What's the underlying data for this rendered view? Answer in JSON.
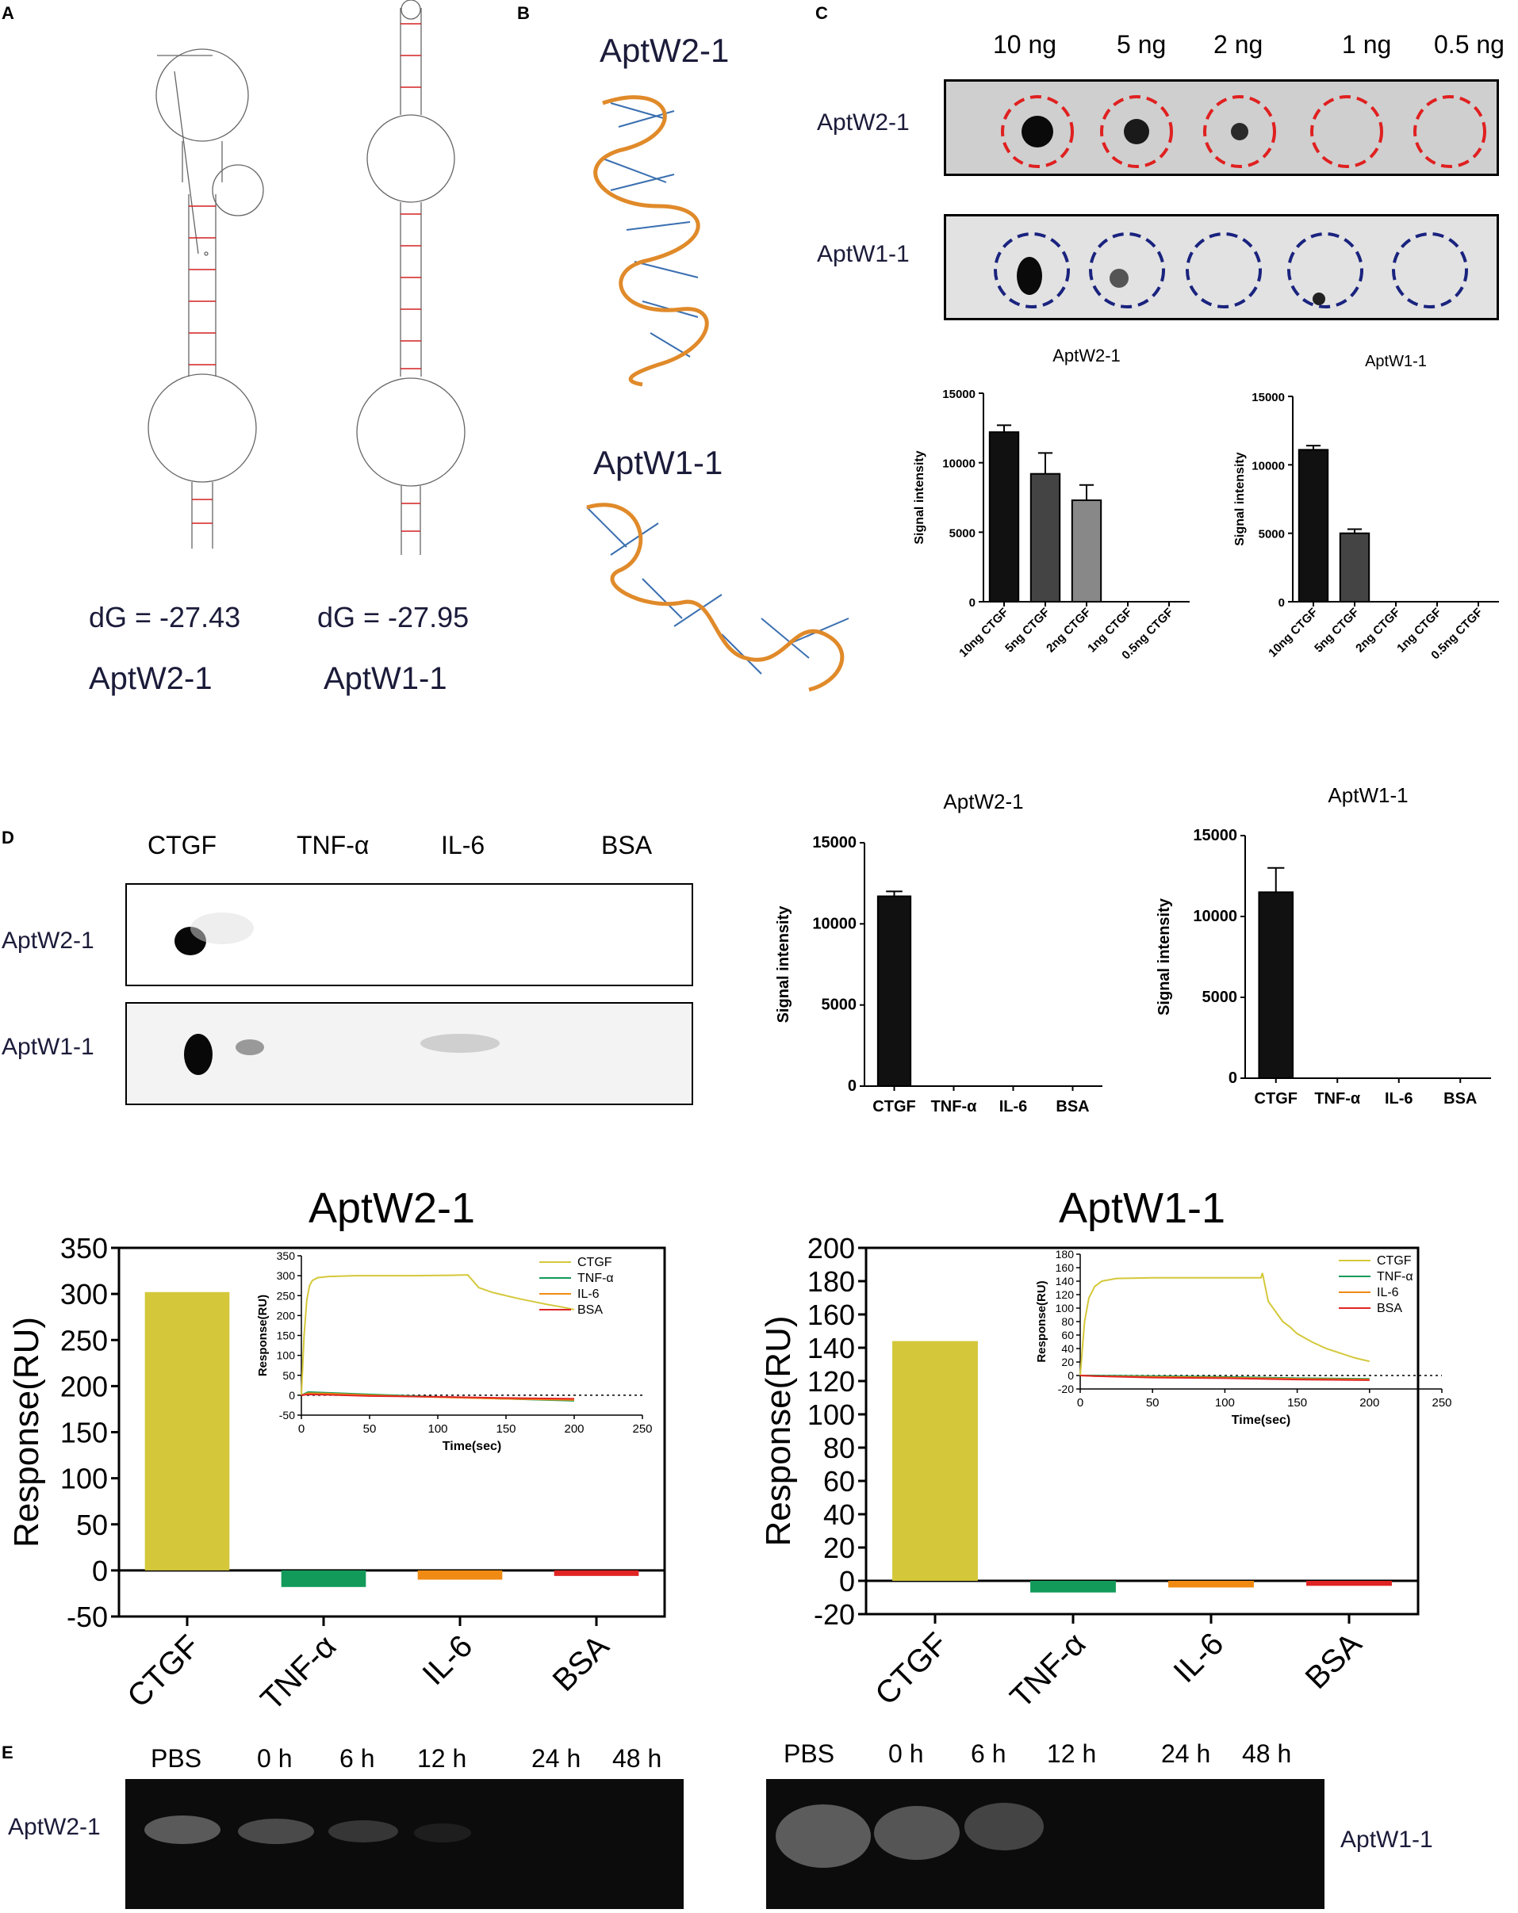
{
  "panels": [
    "A",
    "B",
    "C",
    "D",
    "E"
  ],
  "panel_a": {
    "left": {
      "dg": "dG = -27.43",
      "name": "AptW2-1"
    },
    "right": {
      "dg": "dG = -27.95",
      "name": "AptW1-1"
    }
  },
  "panel_b": {
    "top_name": "AptW2-1",
    "bottom_name": "AptW1-1"
  },
  "panel_c": {
    "amounts": [
      "10 ng",
      "5 ng",
      "2 ng",
      "1 ng",
      "0.5 ng"
    ],
    "row1": "AptW2-1",
    "row2": "AptW1-1",
    "colors": {
      "row1_circle": "#e02020",
      "row2_circle": "#1a237e"
    }
  },
  "panel_d_blot": {
    "proteins": [
      "CTGF",
      "TNF-α",
      "IL-6",
      "BSA"
    ],
    "row1": "AptW2-1",
    "row2": "AptW1-1"
  },
  "panel_e": {
    "left_times": [
      "PBS",
      "0 h",
      "6 h",
      "12 h",
      "24 h",
      "48 h"
    ],
    "right_times": [
      "PBS",
      "0 h",
      "6 h",
      "12 h",
      "24 h",
      "48 h"
    ],
    "left_label": "AptW2-1",
    "right_label": "AptW1-1"
  },
  "chart_data": [
    {
      "id": "c-aptw2",
      "type": "bar",
      "title": "AptW2-1",
      "ylabel": "Signal intensity",
      "categories": [
        "10ng CTGF",
        "5ng CTGF",
        "2ng CTGF",
        "1ng CTGF",
        "0.5ng CTGF"
      ],
      "values": [
        12200,
        9200,
        7300,
        0,
        0
      ],
      "errors": [
        500,
        1500,
        1100,
        0,
        0
      ],
      "colors": [
        "#111111",
        "#444444",
        "#888888",
        "#111111",
        "#111111"
      ],
      "ylim": [
        0,
        15000
      ],
      "yticks": [
        0,
        5000,
        10000,
        15000
      ]
    },
    {
      "id": "c-aptw1",
      "type": "bar",
      "title": "AptW1-1",
      "ylabel": "Signal intensity",
      "categories": [
        "10ng CTGF",
        "5ng CTGF",
        "2ng CTGF",
        "1ng CTGF",
        "0.5ng CTGF"
      ],
      "values": [
        11100,
        5000,
        0,
        0,
        0
      ],
      "errors": [
        300,
        300,
        0,
        0,
        0
      ],
      "colors": [
        "#111111",
        "#444444",
        "#888888",
        "#111111",
        "#111111"
      ],
      "ylim": [
        0,
        15000
      ],
      "yticks": [
        0,
        5000,
        10000,
        15000
      ]
    },
    {
      "id": "d-aptw2",
      "type": "bar",
      "title": "AptW2-1",
      "ylabel": "Signal intensity",
      "categories": [
        "CTGF",
        "TNF-α",
        "IL-6",
        "BSA"
      ],
      "values": [
        11700,
        0,
        0,
        0
      ],
      "errors": [
        300,
        0,
        0,
        0
      ],
      "colors": [
        "#111111",
        "#111111",
        "#111111",
        "#111111"
      ],
      "ylim": [
        0,
        15000
      ],
      "yticks": [
        0,
        5000,
        10000,
        15000
      ]
    },
    {
      "id": "d-aptw1",
      "type": "bar",
      "title": "AptW1-1",
      "ylabel": "Signal intensity",
      "categories": [
        "CTGF",
        "TNF-α",
        "IL-6",
        "BSA"
      ],
      "values": [
        11500,
        0,
        0,
        0
      ],
      "errors": [
        1500,
        0,
        0,
        0
      ],
      "colors": [
        "#111111",
        "#111111",
        "#111111",
        "#111111"
      ],
      "ylim": [
        0,
        15000
      ],
      "yticks": [
        0,
        5000,
        10000,
        15000
      ]
    },
    {
      "id": "spr-aptw2",
      "type": "bar",
      "title": "AptW2-1",
      "ylabel": "Response(RU)",
      "categories": [
        "CTGF",
        "TNF-α",
        "IL-6",
        "BSA"
      ],
      "values": [
        302,
        -18,
        -10,
        -6
      ],
      "colors": [
        "#d4c83a",
        "#129a5a",
        "#f08a12",
        "#e02424"
      ],
      "ylim": [
        -50,
        350
      ],
      "yticks": [
        -50,
        0,
        50,
        100,
        150,
        200,
        250,
        300,
        350
      ],
      "inset": {
        "type": "line",
        "xlabel": "Time(sec)",
        "ylabel": "Response(RU)",
        "xlim": [
          0,
          250
        ],
        "ylim": [
          -50,
          350
        ],
        "xticks": [
          0,
          50,
          100,
          150,
          200,
          250
        ],
        "yticks": [
          -50,
          0,
          50,
          100,
          150,
          200,
          250,
          300,
          350
        ],
        "series": [
          {
            "name": "CTGF",
            "color": "#d4c83a",
            "x": [
              0,
              2,
              4,
              6,
              8,
              12,
              20,
              40,
              80,
              110,
              122,
              130,
              140,
              150,
              160,
              170,
              180,
              190,
              200
            ],
            "y": [
              0,
              150,
              240,
              275,
              288,
              295,
              298,
              300,
              300,
              301,
              302,
              270,
              258,
              250,
              242,
              235,
              228,
              222,
              215
            ]
          },
          {
            "name": "TNF-α",
            "color": "#129a5a",
            "x": [
              0,
              5,
              20,
              50,
              100,
              150,
              200
            ],
            "y": [
              0,
              8,
              6,
              2,
              -4,
              -9,
              -14
            ]
          },
          {
            "name": "IL-6",
            "color": "#f08a12",
            "x": [
              0,
              5,
              20,
              50,
              100,
              150,
              200
            ],
            "y": [
              0,
              5,
              4,
              0,
              -5,
              -9,
              -12
            ]
          },
          {
            "name": "BSA",
            "color": "#e02424",
            "x": [
              0,
              5,
              20,
              50,
              100,
              150,
              200
            ],
            "y": [
              0,
              2,
              1,
              -2,
              -4,
              -7,
              -9
            ]
          }
        ]
      }
    },
    {
      "id": "spr-aptw1",
      "type": "bar",
      "title": "AptW1-1",
      "ylabel": "Response(RU)",
      "categories": [
        "CTGF",
        "TNF-α",
        "IL-6",
        "BSA"
      ],
      "values": [
        144,
        -7,
        -4,
        -3
      ],
      "colors": [
        "#d4c83a",
        "#129a5a",
        "#f08a12",
        "#e02424"
      ],
      "ylim": [
        -20,
        200
      ],
      "yticks": [
        -20,
        0,
        20,
        40,
        60,
        80,
        100,
        120,
        140,
        160,
        180,
        200
      ],
      "inset": {
        "type": "line",
        "xlabel": "Time(sec)",
        "ylabel": "Response(RU)",
        "xlim": [
          0,
          250
        ],
        "ylim": [
          -20,
          180
        ],
        "xticks": [
          0,
          50,
          100,
          150,
          200,
          250
        ],
        "yticks": [
          -20,
          0,
          20,
          40,
          60,
          80,
          100,
          120,
          140,
          160,
          180
        ],
        "series": [
          {
            "name": "CTGF",
            "color": "#d4c83a",
            "x": [
              0,
              3,
              6,
              10,
              15,
              25,
              50,
              100,
              125,
              126,
              130,
              140,
              145,
              150,
              160,
              170,
              180,
              190,
              200
            ],
            "y": [
              0,
              80,
              115,
              132,
              140,
              144,
              145,
              145,
              145,
              152,
              110,
              80,
              72,
              62,
              50,
              40,
              33,
              26,
              21
            ]
          },
          {
            "name": "TNF-α",
            "color": "#129a5a",
            "x": [
              0,
              10,
              50,
              100,
              150,
              200
            ],
            "y": [
              0,
              0,
              -1,
              -2,
              -4,
              -5
            ]
          },
          {
            "name": "IL-6",
            "color": "#f08a12",
            "x": [
              0,
              10,
              50,
              100,
              150,
              200
            ],
            "y": [
              0,
              -1,
              -2,
              -3,
              -5,
              -6
            ]
          },
          {
            "name": "BSA",
            "color": "#e02424",
            "x": [
              0,
              10,
              50,
              100,
              150,
              200
            ],
            "y": [
              0,
              -1,
              -3,
              -4,
              -6,
              -7
            ]
          }
        ]
      }
    }
  ]
}
